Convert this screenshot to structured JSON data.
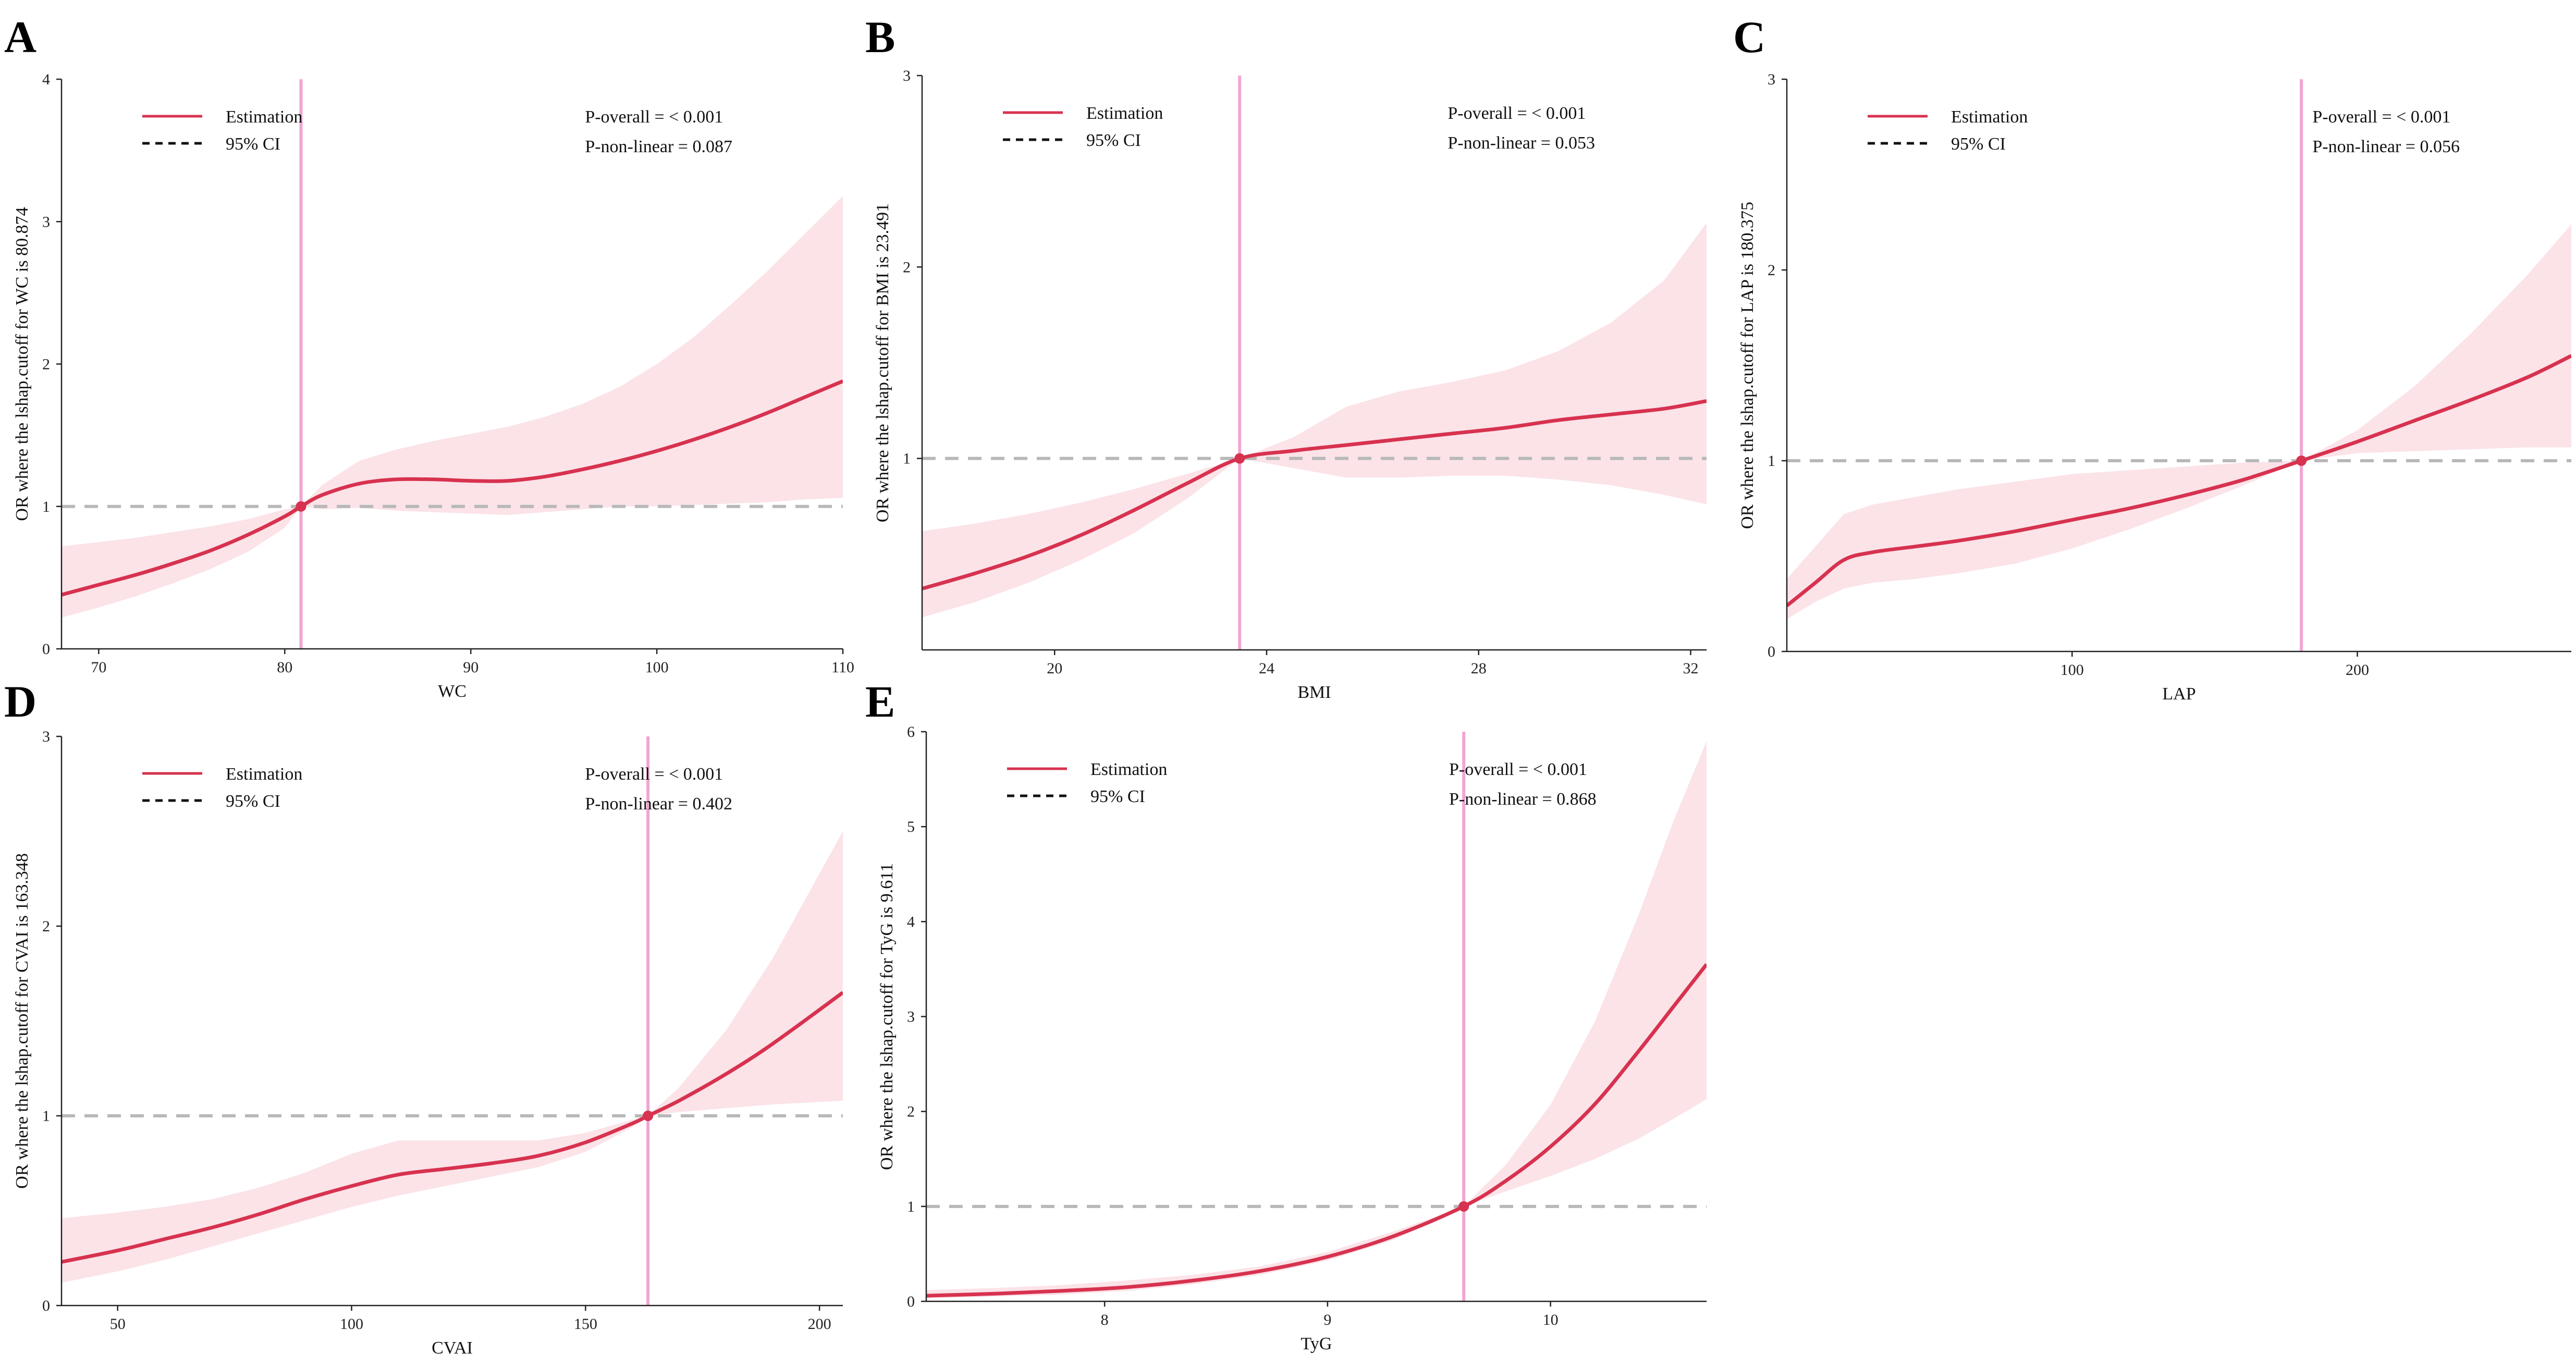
{
  "figure": {
    "legend_estimation": "Estimation",
    "legend_ci": "95% CI"
  },
  "colors": {
    "estimate": "#d7324f",
    "ci_band": "#fbe3e8",
    "cutoff_line": "#f0a6d2",
    "reference_line": "#b8b8b8"
  },
  "chart_data": [
    {
      "panel": "A",
      "type": "line",
      "xlabel": "WC",
      "ylabel": "OR where the lshap.cutoff for WC is 80.874",
      "xlim": [
        68,
        110
      ],
      "ylim": [
        0,
        4
      ],
      "xticks": [
        70,
        80,
        90,
        100,
        110
      ],
      "yticks": [
        0,
        1,
        2,
        3,
        4
      ],
      "cutoff": 80.874,
      "reference_y": 1,
      "p_overall": "P-overall = < 0.001",
      "p_nonlinear": "P-non-linear = 0.087",
      "x": [
        68,
        70,
        72,
        74,
        76,
        78,
        80,
        80.874,
        82,
        84,
        86,
        88,
        90,
        92,
        94,
        96,
        98,
        100,
        102,
        104,
        106,
        108,
        110
      ],
      "or": [
        0.38,
        0.45,
        0.52,
        0.6,
        0.69,
        0.8,
        0.93,
        1.0,
        1.08,
        1.16,
        1.19,
        1.19,
        1.18,
        1.18,
        1.21,
        1.26,
        1.32,
        1.39,
        1.47,
        1.56,
        1.66,
        1.77,
        1.88
      ],
      "lower": [
        0.22,
        0.29,
        0.37,
        0.46,
        0.56,
        0.68,
        0.85,
        1.0,
        0.98,
        0.99,
        0.97,
        0.96,
        0.95,
        0.94,
        0.96,
        0.98,
        1.0,
        1.0,
        1.01,
        1.02,
        1.03,
        1.05,
        1.06
      ],
      "upper": [
        0.72,
        0.75,
        0.78,
        0.82,
        0.86,
        0.91,
        0.98,
        1.0,
        1.15,
        1.32,
        1.4,
        1.46,
        1.51,
        1.56,
        1.63,
        1.72,
        1.84,
        2.0,
        2.19,
        2.42,
        2.66,
        2.92,
        3.18
      ]
    },
    {
      "panel": "B",
      "type": "line",
      "xlabel": "BMI",
      "ylabel": "OR where the lshap.cutoff for BMI is 23.491",
      "xlim": [
        17.5,
        32.3
      ],
      "ylim": [
        0,
        3
      ],
      "xticks": [
        20,
        24,
        28,
        32
      ],
      "yticks": [
        1,
        2,
        3
      ],
      "cutoff": 23.491,
      "reference_y": 1,
      "p_overall": "P-overall = < 0.001",
      "p_nonlinear": "P-non-linear = 0.053",
      "x": [
        17.5,
        18.5,
        19.5,
        20.5,
        21.5,
        22.5,
        23.491,
        24.5,
        25.5,
        26.5,
        27.5,
        28.5,
        29.5,
        30.5,
        31.5,
        32.3
      ],
      "or": [
        0.32,
        0.4,
        0.49,
        0.6,
        0.73,
        0.87,
        1.0,
        1.04,
        1.07,
        1.1,
        1.13,
        1.16,
        1.2,
        1.23,
        1.26,
        1.3
      ],
      "lower": [
        0.17,
        0.25,
        0.35,
        0.47,
        0.61,
        0.79,
        1.0,
        0.95,
        0.9,
        0.9,
        0.91,
        0.91,
        0.89,
        0.86,
        0.81,
        0.76
      ],
      "upper": [
        0.62,
        0.66,
        0.71,
        0.77,
        0.84,
        0.92,
        1.0,
        1.11,
        1.27,
        1.35,
        1.4,
        1.46,
        1.56,
        1.71,
        1.93,
        2.23
      ]
    },
    {
      "panel": "C",
      "type": "line",
      "xlabel": "LAP",
      "ylabel": "OR where the lshap.cutoff for LAP is 180.375",
      "xlim": [
        0,
        275
      ],
      "ylim": [
        0,
        3
      ],
      "xticks": [
        100,
        200
      ],
      "yticks": [
        0,
        1,
        2,
        3
      ],
      "cutoff": 180.375,
      "reference_y": 1,
      "p_overall": "P-overall = < 0.001",
      "p_nonlinear": "P-non-linear = 0.056",
      "x": [
        0,
        10,
        20,
        30,
        45,
        60,
        80,
        100,
        120,
        140,
        160,
        180.375,
        200,
        220,
        240,
        260,
        275
      ],
      "or": [
        0.24,
        0.36,
        0.48,
        0.52,
        0.55,
        0.58,
        0.63,
        0.69,
        0.75,
        0.82,
        0.9,
        1.0,
        1.1,
        1.21,
        1.32,
        1.44,
        1.55
      ],
      "lower": [
        0.17,
        0.26,
        0.33,
        0.36,
        0.38,
        0.41,
        0.46,
        0.54,
        0.64,
        0.75,
        0.87,
        1.0,
        1.04,
        1.05,
        1.06,
        1.07,
        1.07
      ],
      "upper": [
        0.38,
        0.55,
        0.72,
        0.77,
        0.81,
        0.85,
        0.89,
        0.93,
        0.95,
        0.97,
        0.99,
        1.0,
        1.16,
        1.39,
        1.67,
        1.98,
        2.24
      ]
    },
    {
      "panel": "D",
      "type": "line",
      "xlabel": "CVAI",
      "ylabel": "OR where the lshap.cutoff for CVAI is 163.348",
      "xlim": [
        38,
        205
      ],
      "ylim": [
        0,
        3
      ],
      "xticks": [
        50,
        100,
        150,
        200
      ],
      "yticks": [
        0,
        1,
        2,
        3
      ],
      "cutoff": 163.348,
      "reference_y": 1,
      "p_overall": "P-overall = < 0.001",
      "p_nonlinear": "P-non-linear = 0.402",
      "x": [
        38,
        50,
        60,
        70,
        80,
        90,
        100,
        110,
        120,
        130,
        140,
        150,
        160,
        163.348,
        170,
        180,
        190,
        205
      ],
      "or": [
        0.23,
        0.29,
        0.35,
        0.41,
        0.48,
        0.56,
        0.63,
        0.69,
        0.72,
        0.75,
        0.79,
        0.86,
        0.96,
        1.0,
        1.08,
        1.22,
        1.38,
        1.65
      ],
      "lower": [
        0.12,
        0.18,
        0.24,
        0.31,
        0.38,
        0.45,
        0.52,
        0.58,
        0.63,
        0.68,
        0.73,
        0.81,
        0.94,
        1.0,
        1.02,
        1.04,
        1.06,
        1.08
      ],
      "upper": [
        0.46,
        0.49,
        0.52,
        0.56,
        0.62,
        0.7,
        0.8,
        0.87,
        0.87,
        0.87,
        0.87,
        0.91,
        0.98,
        1.0,
        1.15,
        1.45,
        1.83,
        2.5
      ]
    },
    {
      "panel": "E",
      "type": "line",
      "xlabel": "TyG",
      "ylabel": "OR where the lshap.cutoff for TyG is 9.611",
      "xlim": [
        7.2,
        10.7
      ],
      "ylim": [
        0,
        6
      ],
      "xticks": [
        8,
        9,
        10
      ],
      "yticks": [
        0,
        1,
        2,
        3,
        4,
        5,
        6
      ],
      "cutoff": 9.611,
      "reference_y": 1,
      "p_overall": "P-overall = < 0.001",
      "p_nonlinear": "P-non-linear = 0.868",
      "x": [
        7.2,
        7.5,
        7.8,
        8.1,
        8.4,
        8.7,
        9.0,
        9.3,
        9.611,
        9.8,
        10.0,
        10.2,
        10.4,
        10.55,
        10.7
      ],
      "or": [
        0.06,
        0.08,
        0.11,
        0.15,
        0.22,
        0.32,
        0.47,
        0.69,
        1.0,
        1.27,
        1.63,
        2.08,
        2.65,
        3.1,
        3.55
      ],
      "lower": [
        0.03,
        0.05,
        0.07,
        0.11,
        0.18,
        0.28,
        0.43,
        0.65,
        1.0,
        1.16,
        1.32,
        1.5,
        1.72,
        1.92,
        2.13
      ],
      "upper": [
        0.12,
        0.14,
        0.17,
        0.22,
        0.28,
        0.37,
        0.52,
        0.74,
        1.0,
        1.44,
        2.07,
        2.95,
        4.1,
        5.05,
        5.9
      ]
    }
  ]
}
